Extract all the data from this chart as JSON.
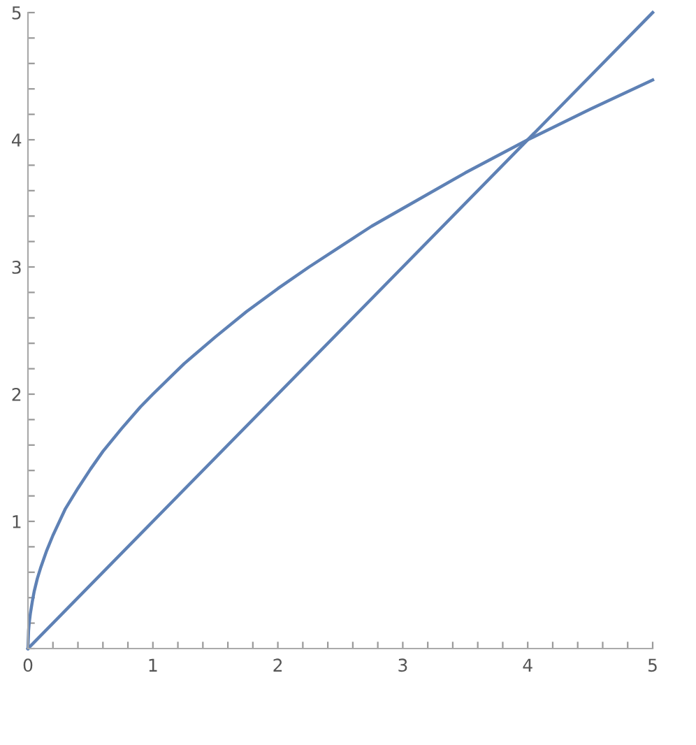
{
  "chart_data": {
    "type": "line",
    "series": [
      {
        "color": "#5e81b5",
        "x": [
          0,
          5
        ],
        "values": [
          0,
          5
        ]
      },
      {
        "color": "#5e81b5",
        "x": [
          0,
          0.005,
          0.01,
          0.02,
          0.035,
          0.05,
          0.075,
          0.1,
          0.15,
          0.2,
          0.3,
          0.4,
          0.5,
          0.6,
          0.75,
          0.9,
          1,
          1.25,
          1.5,
          1.75,
          2,
          2.25,
          2.5,
          2.75,
          3,
          3.5,
          4,
          4.5,
          5
        ],
        "values": [
          0,
          0.14,
          0.2,
          0.28,
          0.37,
          0.45,
          0.55,
          0.63,
          0.77,
          0.89,
          1.1,
          1.26,
          1.41,
          1.55,
          1.73,
          1.9,
          2,
          2.24,
          2.45,
          2.65,
          2.83,
          3,
          3.16,
          3.32,
          3.46,
          3.74,
          4,
          4.24,
          4.47
        ]
      }
    ],
    "xlim": [
      0,
      5
    ],
    "ylim": [
      0,
      5
    ],
    "xticks": [
      0,
      {
        "value": 0.2,
        "label": null
      },
      {
        "value": 0.4,
        "label": null
      },
      {
        "value": 0.6,
        "label": null
      },
      {
        "value": 0.8,
        "label": null
      },
      1,
      {
        "value": 1.2,
        "label": null
      },
      {
        "value": 1.4,
        "label": null
      },
      {
        "value": 1.6,
        "label": null
      },
      {
        "value": 1.8,
        "label": null
      },
      2,
      {
        "value": 2.2,
        "label": null
      },
      {
        "value": 2.4,
        "label": null
      },
      {
        "value": 2.6,
        "label": null
      },
      {
        "value": 2.8,
        "label": null
      },
      3,
      {
        "value": 3.2,
        "label": null
      },
      {
        "value": 3.4,
        "label": null
      },
      {
        "value": 3.6,
        "label": null
      },
      {
        "value": 3.8,
        "label": null
      },
      4,
      {
        "value": 4.2,
        "label": null
      },
      {
        "value": 4.4,
        "label": null
      },
      {
        "value": 4.6,
        "label": null
      },
      {
        "value": 4.8,
        "label": null
      },
      5
    ],
    "yticks": [
      {
        "value": 0,
        "label": null
      },
      {
        "value": 0.2,
        "label": null
      },
      {
        "value": 0.4,
        "label": null
      },
      {
        "value": 0.6,
        "label": null
      },
      {
        "value": 0.8,
        "label": null
      },
      1,
      {
        "value": 1.2,
        "label": null
      },
      {
        "value": 1.4,
        "label": null
      },
      {
        "value": 1.6,
        "label": null
      },
      {
        "value": 1.8,
        "label": null
      },
      2,
      {
        "value": 2.2,
        "label": null
      },
      {
        "value": 2.4,
        "label": null
      },
      {
        "value": 2.6,
        "label": null
      },
      {
        "value": 2.8,
        "label": null
      },
      3,
      {
        "value": 3.2,
        "label": null
      },
      {
        "value": 3.4,
        "label": null
      },
      {
        "value": 3.6,
        "label": null
      },
      {
        "value": 3.8,
        "label": null
      },
      4,
      {
        "value": 4.2,
        "label": null
      },
      {
        "value": 4.4,
        "label": null
      },
      {
        "value": 4.6,
        "label": null
      },
      {
        "value": 4.8,
        "label": null
      },
      5
    ],
    "grid": false,
    "legend": false,
    "marker": "none",
    "line_style": "solid"
  }
}
